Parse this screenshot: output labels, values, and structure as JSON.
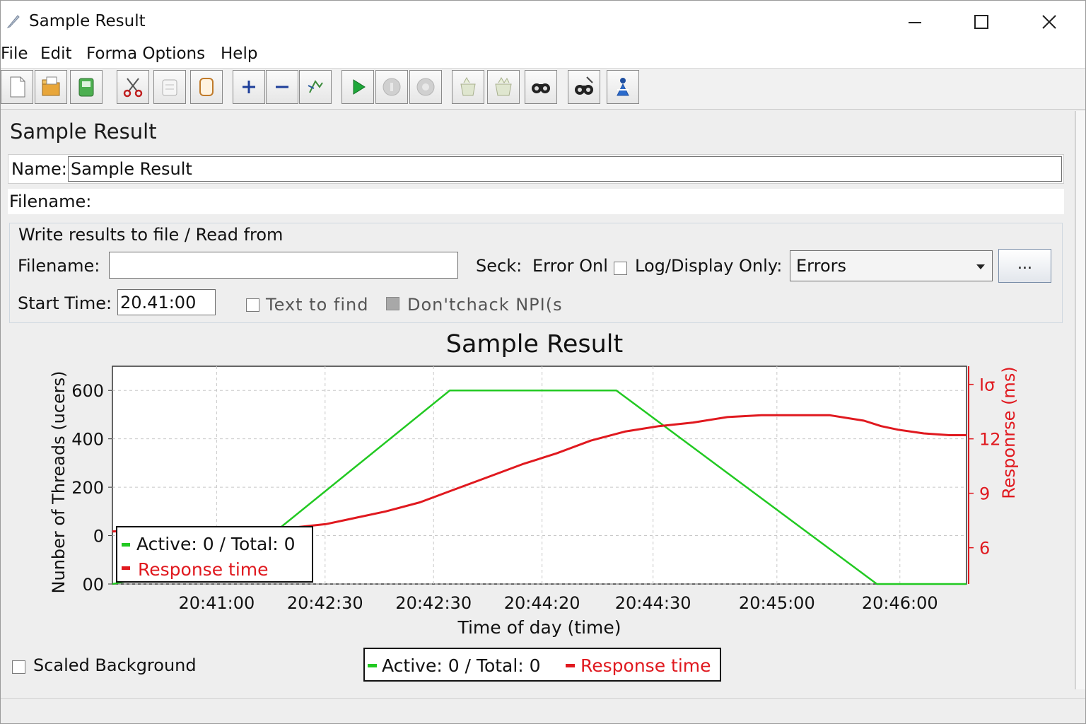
{
  "window": {
    "title": "Sample Result"
  },
  "menu": [
    "File",
    "Edit",
    "Forma Options",
    "Help"
  ],
  "toolbar": {
    "buttons": [
      {
        "icon": "new-document-icon"
      },
      {
        "icon": "open-folder-icon"
      },
      {
        "icon": "save-icon"
      },
      {
        "icon": "cut-icon"
      },
      {
        "icon": "copy-icon"
      },
      {
        "icon": "paste-icon"
      },
      {
        "icon": "expand-plus-icon"
      },
      {
        "icon": "collapse-minus-icon"
      },
      {
        "icon": "toggle-icon"
      },
      {
        "icon": "start-icon"
      },
      {
        "icon": "stop-icon"
      },
      {
        "icon": "shutdown-icon"
      },
      {
        "icon": "clear-icon"
      },
      {
        "icon": "clear-all-icon"
      },
      {
        "icon": "search-icon"
      },
      {
        "icon": "reset-search-icon"
      },
      {
        "icon": "function-helper-icon"
      }
    ]
  },
  "panel": {
    "title": "Sample Result",
    "name_label": "Name:",
    "name_value": "Sample Result",
    "filename_label": "Filename:"
  },
  "file_group": {
    "legend": "Write results to file / Read from",
    "filename_label": "Filename:",
    "filename_value": "",
    "seck_label": "Seck:",
    "error_only_label": "Error Onl",
    "log_display_label": "Log/Display Only:",
    "log_display_value": "Errors",
    "browse_label": "...",
    "start_time_label": "Start Time:",
    "start_time_value": "20.41:00",
    "text_to_find_label": "Text to find",
    "dont_check_label": "Don'tchack NPI(s"
  },
  "chart_data": {
    "type": "line",
    "title": "Sample Result",
    "xlabel": "Time of day (time)",
    "ylabel_left": "Nunber of Threads (ucers)",
    "ylabel_right": "Responrse (ms)",
    "x_tick_labels": [
      "20:41:00",
      "20:42:30",
      "20:42:30",
      "20:44:20",
      "20:44:30",
      "20:45:00",
      "20:46:00"
    ],
    "y_left_tick_labels": [
      "600",
      "400",
      "200",
      "0",
      "00"
    ],
    "y_right_tick_labels": [
      "Ισ",
      "12",
      "9",
      "6"
    ],
    "y_left_range": [
      -200,
      700
    ],
    "y_right_range": [
      4,
      16
    ],
    "grid": true,
    "legend_placement": "bottom-left",
    "series": [
      {
        "name": "Active: 0 / Total: 0",
        "color": "#22c922",
        "axis": "left",
        "x": [
          0.0,
          0.15,
          0.395,
          0.59,
          0.895,
          1.0
        ],
        "values": [
          -200,
          -100,
          600,
          600,
          -200,
          -200
        ]
      },
      {
        "name": "Response time",
        "color": "#e0191f",
        "axis": "right",
        "x": [
          0.0,
          0.05,
          0.1,
          0.15,
          0.2,
          0.25,
          0.28,
          0.32,
          0.36,
          0.4,
          0.44,
          0.48,
          0.52,
          0.56,
          0.6,
          0.64,
          0.68,
          0.72,
          0.76,
          0.8,
          0.84,
          0.88,
          0.9,
          0.92,
          0.95,
          0.98,
          1.0
        ],
        "values": [
          6.9,
          6.95,
          7.0,
          7.0,
          7.05,
          7.3,
          7.6,
          8.0,
          8.5,
          9.2,
          9.9,
          10.6,
          11.2,
          11.9,
          12.4,
          12.7,
          12.9,
          13.2,
          13.3,
          13.3,
          13.3,
          13.0,
          12.7,
          12.5,
          12.3,
          12.2,
          12.2
        ]
      }
    ],
    "legend_inset": {
      "active_label": "Active: 0  / Total: 0",
      "response_label": "Response time"
    },
    "legend_bottom": {
      "active_label": "Active: 0  / Total: 0",
      "response_label": "Response time"
    }
  },
  "scaled_background_label": "Scaled Background"
}
